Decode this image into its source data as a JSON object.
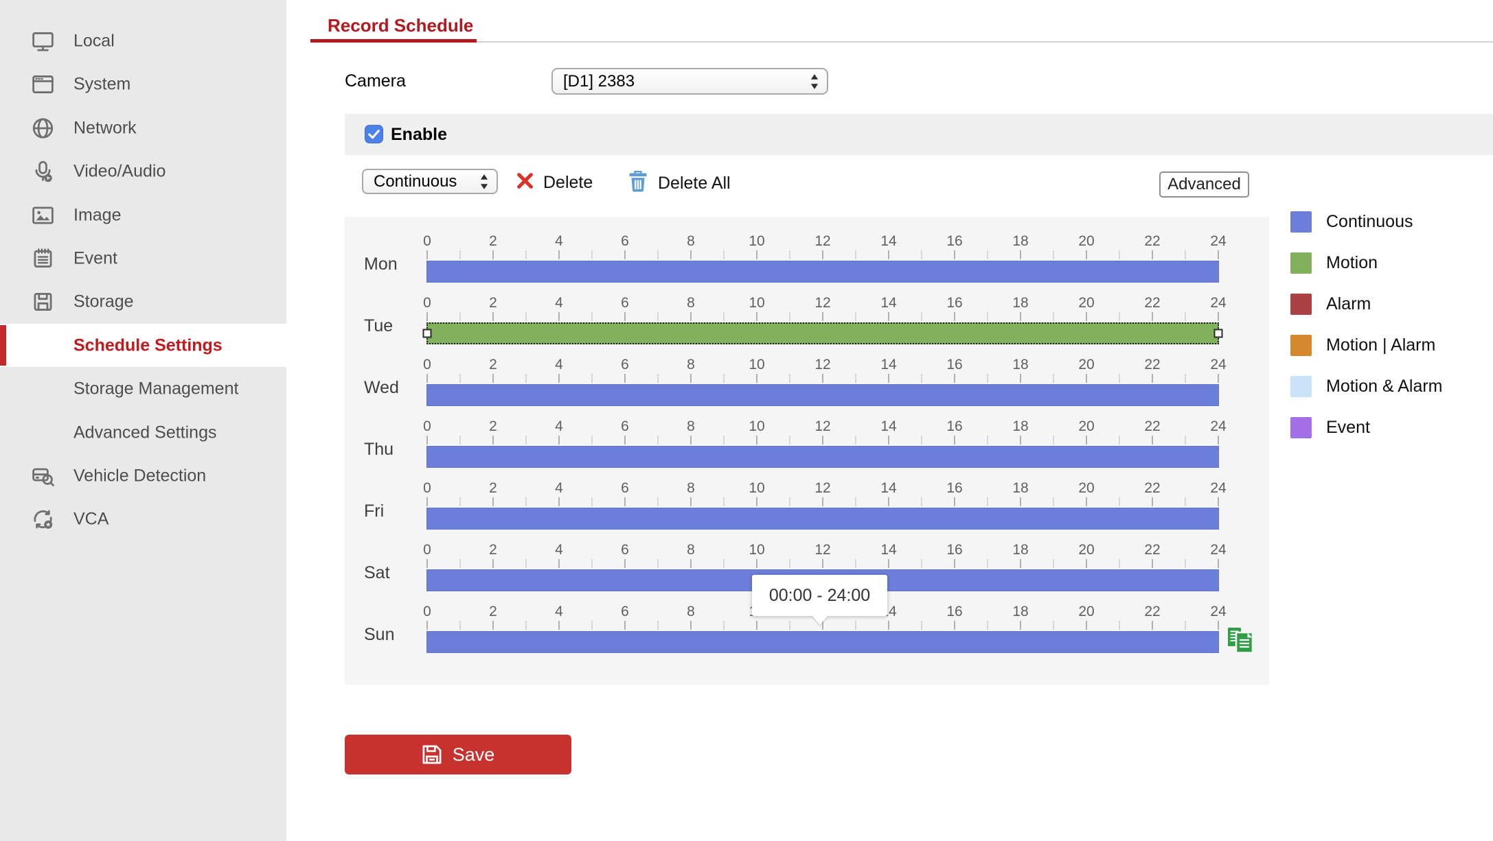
{
  "sidebar": {
    "items": [
      {
        "label": "Local",
        "icon": "monitor-icon"
      },
      {
        "label": "System",
        "icon": "window-icon"
      },
      {
        "label": "Network",
        "icon": "globe-icon"
      },
      {
        "label": "Video/Audio",
        "icon": "microphone-icon"
      },
      {
        "label": "Image",
        "icon": "image-icon"
      },
      {
        "label": "Event",
        "icon": "event-icon"
      },
      {
        "label": "Storage",
        "icon": "storage-icon"
      },
      {
        "label": "Schedule Settings",
        "sub": true,
        "active": true
      },
      {
        "label": "Storage Management",
        "sub": true
      },
      {
        "label": "Advanced Settings",
        "sub": true
      },
      {
        "label": "Vehicle Detection",
        "icon": "vehicle-icon"
      },
      {
        "label": "VCA",
        "icon": "vca-icon"
      }
    ]
  },
  "tab": {
    "label": "Record Schedule"
  },
  "camera": {
    "label": "Camera",
    "value": "[D1] 2383"
  },
  "enable": {
    "label": "Enable",
    "checked": true
  },
  "toolbar": {
    "type_value": "Continuous",
    "delete_label": "Delete",
    "delete_all_label": "Delete All",
    "advanced_label": "Advanced"
  },
  "schedule": {
    "hour_labels": [
      "0",
      "2",
      "4",
      "6",
      "8",
      "10",
      "12",
      "14",
      "16",
      "18",
      "20",
      "22",
      "24"
    ],
    "days": [
      {
        "name": "Mon",
        "type": "continuous",
        "start": "00:00",
        "end": "24:00",
        "selected": false
      },
      {
        "name": "Tue",
        "type": "motion",
        "start": "00:00",
        "end": "24:00",
        "selected": true
      },
      {
        "name": "Wed",
        "type": "continuous",
        "start": "00:00",
        "end": "24:00",
        "selected": false
      },
      {
        "name": "Thu",
        "type": "continuous",
        "start": "00:00",
        "end": "24:00",
        "selected": false
      },
      {
        "name": "Fri",
        "type": "continuous",
        "start": "00:00",
        "end": "24:00",
        "selected": false
      },
      {
        "name": "Sat",
        "type": "continuous",
        "start": "00:00",
        "end": "24:00",
        "selected": false
      },
      {
        "name": "Sun",
        "type": "continuous",
        "start": "00:00",
        "end": "24:00",
        "selected": false
      }
    ],
    "tooltip": {
      "text": "00:00 - 24:00"
    }
  },
  "legend": [
    {
      "key": "continuous",
      "label": "Continuous",
      "color": "#6b7ed9"
    },
    {
      "key": "motion",
      "label": "Motion",
      "color": "#82b15e"
    },
    {
      "key": "alarm",
      "label": "Alarm",
      "color": "#ab4142"
    },
    {
      "key": "motion_or_alarm",
      "label": "Motion | Alarm",
      "color": "#d5892c"
    },
    {
      "key": "motion_and_alarm",
      "label": "Motion & Alarm",
      "color": "#cbe3f8"
    },
    {
      "key": "event",
      "label": "Event",
      "color": "#a470e8"
    }
  ],
  "colors": {
    "continuous": "#6b7ed9",
    "motion": "#82b15e",
    "accent_red": "#b2191e",
    "save_red": "#c8322e",
    "sidebar_bg": "#e9e9e9",
    "panel_bg": "#f5f5f5"
  },
  "save": {
    "label": "Save"
  }
}
